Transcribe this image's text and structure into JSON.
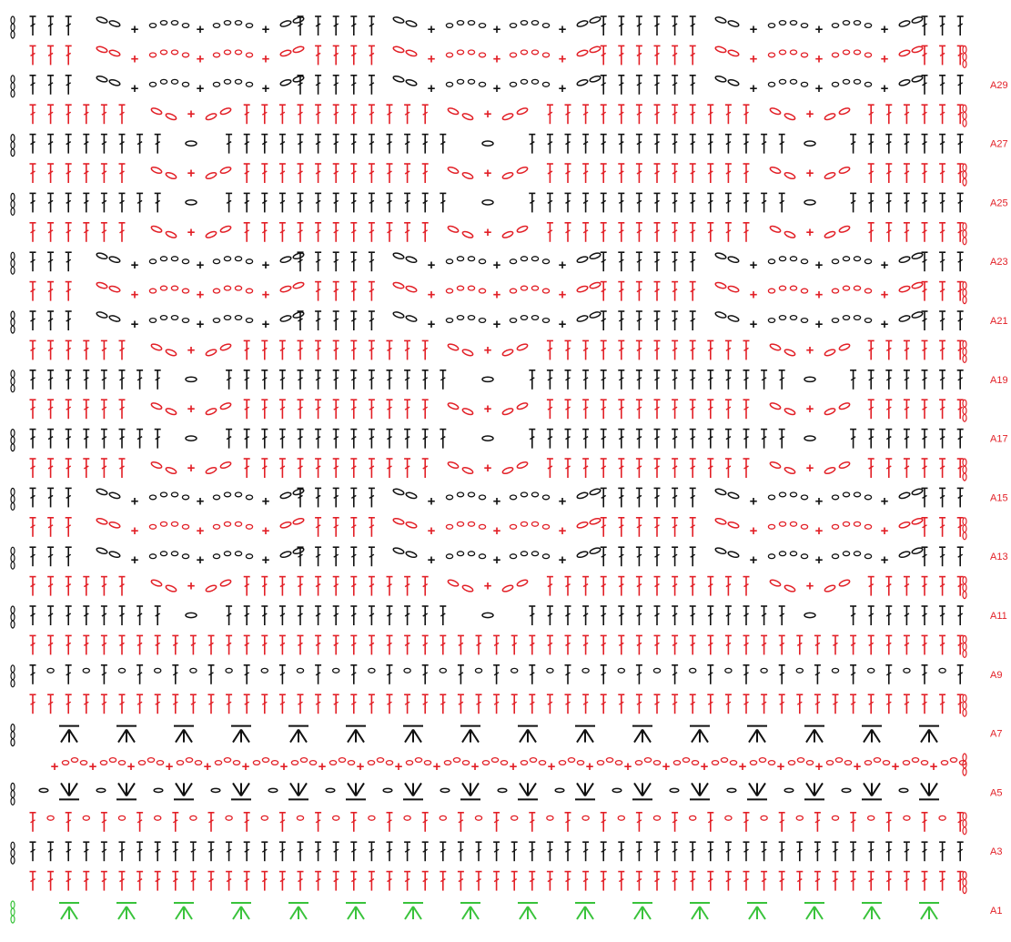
{
  "colors": {
    "red": "#e21f26",
    "black": "#111111",
    "green": "#39c33b"
  },
  "row_labels": [
    "A1",
    "A3",
    "A5",
    "A7",
    "A9",
    "A11",
    "A13",
    "A15",
    "A17",
    "A19",
    "A21",
    "A23",
    "A25",
    "A27",
    "A29"
  ],
  "stitch_symbols": [
    "dc",
    "chain",
    "single-crochet",
    "slip-stitch",
    "dc-cluster"
  ],
  "row_count": 31,
  "stitches_per_row": 53
}
